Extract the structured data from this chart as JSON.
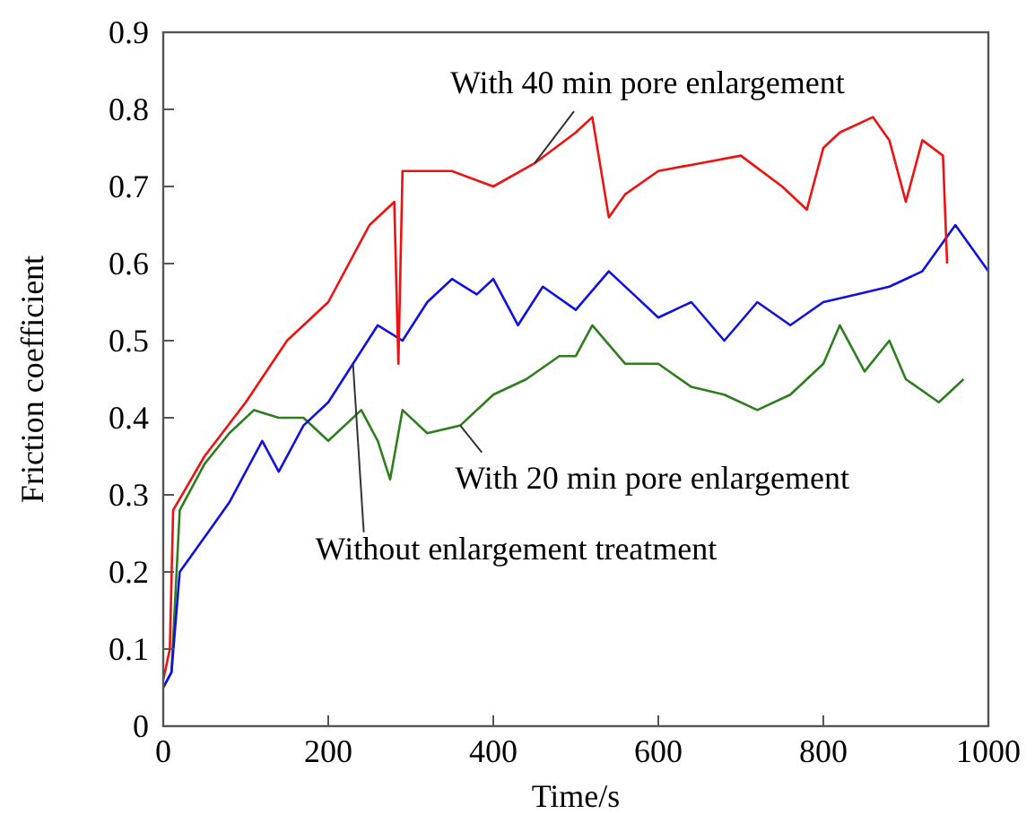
{
  "chart_data": {
    "type": "line",
    "xlabel": "Time/s",
    "ylabel": "Friction coefficient",
    "xlim": [
      0,
      1000
    ],
    "xticks": [
      0,
      200,
      400,
      600,
      800,
      1000
    ],
    "ylim": [
      0,
      0.9
    ],
    "yticks": [
      0,
      0.1,
      0.2,
      0.3,
      0.4,
      0.5,
      0.6,
      0.7,
      0.8,
      0.9
    ],
    "grid": false,
    "marker": "none",
    "line_style": "solid",
    "series": [
      {
        "color": "#2e7d1f",
        "x": [
          0,
          10,
          20,
          50,
          80,
          110,
          140,
          170,
          200,
          240,
          260,
          275,
          290,
          320,
          360,
          400,
          440,
          480,
          500,
          520,
          560,
          600,
          640,
          680,
          720,
          760,
          800,
          820,
          850,
          880,
          900,
          940,
          970
        ],
        "values": [
          0.05,
          0.07,
          0.28,
          0.34,
          0.38,
          0.41,
          0.4,
          0.4,
          0.37,
          0.41,
          0.37,
          0.32,
          0.41,
          0.38,
          0.39,
          0.43,
          0.45,
          0.48,
          0.48,
          0.52,
          0.47,
          0.47,
          0.44,
          0.43,
          0.41,
          0.43,
          0.47,
          0.52,
          0.46,
          0.5,
          0.45,
          0.42,
          0.45
        ]
      },
      {
        "color": "#1010e0",
        "x": [
          0,
          10,
          20,
          40,
          60,
          80,
          100,
          120,
          140,
          170,
          200,
          230,
          260,
          290,
          320,
          350,
          380,
          400,
          430,
          460,
          500,
          540,
          570,
          600,
          640,
          680,
          720,
          760,
          800,
          840,
          880,
          920,
          960,
          1000
        ],
        "values": [
          0.05,
          0.07,
          0.2,
          0.23,
          0.26,
          0.29,
          0.33,
          0.37,
          0.33,
          0.39,
          0.42,
          0.47,
          0.52,
          0.5,
          0.55,
          0.58,
          0.56,
          0.58,
          0.52,
          0.57,
          0.54,
          0.59,
          0.56,
          0.53,
          0.55,
          0.5,
          0.55,
          0.52,
          0.55,
          0.56,
          0.57,
          0.59,
          0.65,
          0.59
        ]
      },
      {
        "color": "#f01010",
        "x": [
          0,
          8,
          12,
          50,
          100,
          150,
          200,
          250,
          280,
          285,
          290,
          350,
          400,
          450,
          500,
          520,
          540,
          560,
          600,
          650,
          700,
          750,
          780,
          800,
          820,
          860,
          880,
          900,
          920,
          945,
          950
        ],
        "values": [
          0.06,
          0.1,
          0.28,
          0.35,
          0.42,
          0.5,
          0.55,
          0.65,
          0.68,
          0.47,
          0.72,
          0.72,
          0.7,
          0.73,
          0.77,
          0.79,
          0.66,
          0.69,
          0.72,
          0.73,
          0.74,
          0.7,
          0.67,
          0.75,
          0.77,
          0.79,
          0.76,
          0.68,
          0.76,
          0.74,
          0.6
        ]
      }
    ],
    "annotations": [
      {
        "text": "With 40 min pore enlargement",
        "x": 450,
        "y": 0.73
      },
      {
        "text": "With 20 min pore enlargement",
        "x": 360,
        "y": 0.39
      },
      {
        "text": "Without enlargement treatment",
        "x": 230,
        "y": 0.47
      }
    ]
  }
}
